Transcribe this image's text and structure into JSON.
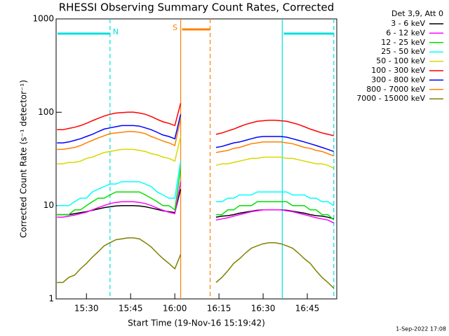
{
  "chart_data": {
    "type": "line",
    "title": "RHESSI Observing Summary Count Rates, Corrected",
    "x_label": "Start Time (19-Nov-16 15:19:42)",
    "y_label": "Corrected Count Rate (s⁻¹ detector⁻¹)",
    "legend_title": "Det 3,9, Att 0",
    "footer": "1-Sep-2022 17:08",
    "log_y": true,
    "xlim": [
      "15:19:42",
      "16:55"
    ],
    "xticks": [
      "15:30",
      "15:45",
      "16:00",
      "16:15",
      "16:30",
      "16:45"
    ],
    "ylim": [
      1,
      1000
    ],
    "yticks": [
      1,
      10,
      100,
      1000
    ],
    "x": [
      "15:20",
      "15:22",
      "15:24",
      "15:26",
      "15:28",
      "15:30",
      "15:32",
      "15:34",
      "15:36",
      "15:38",
      "15:40",
      "15:42",
      "15:44",
      "15:46",
      "15:48",
      "15:50",
      "15:52",
      "15:54",
      "15:56",
      "15:58",
      "16:00",
      "16:02",
      "16:08",
      "16:14",
      "16:16",
      "16:18",
      "16:20",
      "16:22",
      "16:24",
      "16:26",
      "16:28",
      "16:30",
      "16:32",
      "16:34",
      "16:36",
      "16:38",
      "16:40",
      "16:42",
      "16:44",
      "16:46",
      "16:48",
      "16:50",
      "16:52",
      "16:54"
    ],
    "series": [
      {
        "name": "3 - 6 keV",
        "color": "#000000",
        "values": [
          8,
          8,
          8,
          8.2,
          8.4,
          8.6,
          8.9,
          9.2,
          9.5,
          9.7,
          9.9,
          10,
          10,
          10,
          9.9,
          9.7,
          9.4,
          9.1,
          8.8,
          8.6,
          8.4,
          15,
          null,
          7.5,
          7.7,
          7.8,
          8,
          8.3,
          8.5,
          8.7,
          8.9,
          9,
          9,
          9,
          9,
          8.9,
          8.7,
          8.5,
          8.3,
          8,
          7.8,
          7.7,
          7.5,
          7.2
        ]
      },
      {
        "name": "6 - 12 keV",
        "color": "#ff00ff",
        "values": [
          7.5,
          7.5,
          7.7,
          7.9,
          8.2,
          8.5,
          9,
          9.5,
          10,
          10.5,
          10.8,
          11,
          11,
          11,
          10.8,
          10.5,
          10,
          9.4,
          8.9,
          8.5,
          8.2,
          18,
          null,
          7,
          7.2,
          7.4,
          7.7,
          8,
          8.3,
          8.6,
          8.8,
          9,
          9,
          9,
          9,
          8.8,
          8.6,
          8.3,
          8,
          7.7,
          7.4,
          7.2,
          7,
          6.5
        ]
      },
      {
        "name": "12 - 25 keV",
        "color": "#00e000",
        "values": [
          8,
          8,
          8,
          9,
          9,
          10,
          11,
          12,
          12,
          13,
          14,
          14,
          14,
          14,
          14,
          13,
          12,
          11,
          10,
          10,
          9,
          25,
          null,
          8,
          8,
          9,
          9,
          10,
          10,
          10,
          11,
          11,
          11,
          11,
          11,
          11,
          10,
          10,
          10,
          9,
          9,
          8,
          8,
          7
        ]
      },
      {
        "name": "25 - 50 keV",
        "color": "#00ffff",
        "values": [
          10,
          10,
          10,
          11,
          12,
          12,
          14,
          15,
          16,
          17,
          17,
          18,
          18,
          18,
          18,
          17,
          16,
          14,
          13,
          12,
          12,
          30,
          null,
          11,
          11,
          12,
          12,
          13,
          13,
          13,
          14,
          14,
          14,
          14,
          14,
          14,
          13,
          13,
          13,
          12,
          12,
          11,
          11,
          10
        ]
      },
      {
        "name": "50 - 100 keV",
        "color": "#d8d800",
        "values": [
          28,
          28,
          29,
          29,
          30,
          32,
          33,
          35,
          37,
          38,
          39,
          40,
          40,
          40,
          39,
          38,
          36,
          35,
          33,
          32,
          30,
          55,
          null,
          27,
          28,
          28,
          29,
          30,
          31,
          32,
          32,
          33,
          33,
          33,
          33,
          32,
          32,
          31,
          30,
          29,
          28,
          28,
          27,
          25
        ]
      },
      {
        "name": "100 - 300 keV",
        "color": "#ff0000",
        "values": [
          65,
          65,
          67,
          69,
          72,
          76,
          81,
          86,
          91,
          95,
          98,
          99,
          100,
          100,
          98,
          95,
          90,
          84,
          79,
          76,
          72,
          125,
          null,
          58,
          60,
          63,
          66,
          70,
          74,
          77,
          80,
          81,
          82,
          82,
          81,
          80,
          77,
          74,
          70,
          66,
          63,
          60,
          58,
          56
        ]
      },
      {
        "name": "300 - 800 keV",
        "color": "#0000ff",
        "values": [
          47,
          47,
          48,
          50,
          52,
          55,
          58,
          62,
          66,
          68,
          70,
          72,
          72,
          72,
          71,
          68,
          65,
          61,
          57,
          55,
          52,
          95,
          null,
          42,
          43,
          45,
          47,
          48,
          50,
          52,
          54,
          55,
          55,
          55,
          55,
          54,
          52,
          50,
          48,
          46,
          44,
          42,
          40,
          38
        ]
      },
      {
        "name": "800 - 7000 keV",
        "color": "#ff8000",
        "values": [
          40,
          40,
          41,
          42,
          44,
          47,
          50,
          53,
          56,
          59,
          60,
          61,
          62,
          62,
          61,
          59,
          55,
          52,
          49,
          47,
          44,
          85,
          null,
          37,
          38,
          39,
          41,
          42,
          44,
          46,
          47,
          48,
          48,
          48,
          48,
          47,
          46,
          44,
          42,
          41,
          39,
          38,
          36,
          34
        ]
      },
      {
        "name": "7000 - 15000 keV",
        "color": "#808000",
        "values": [
          1.5,
          1.5,
          1.7,
          1.8,
          2.1,
          2.4,
          2.8,
          3.2,
          3.7,
          4,
          4.3,
          4.4,
          4.5,
          4.5,
          4.4,
          4,
          3.6,
          3.1,
          2.7,
          2.4,
          2.1,
          3,
          null,
          1.5,
          1.7,
          2,
          2.4,
          2.7,
          3.1,
          3.5,
          3.7,
          3.9,
          4,
          4,
          3.9,
          3.7,
          3.5,
          3.1,
          2.7,
          2.4,
          2,
          1.7,
          1.5,
          1.3
        ]
      }
    ],
    "annotations": [
      {
        "label": "N",
        "color": "#00e0e0",
        "start": "15:19:42",
        "end": "15:38"
      },
      {
        "color": "#00e0e0",
        "start": "16:36:30",
        "end": "16:54"
      },
      {
        "label": "S",
        "color": "#ff8000",
        "start": "16:02",
        "end": "16:12"
      }
    ]
  }
}
